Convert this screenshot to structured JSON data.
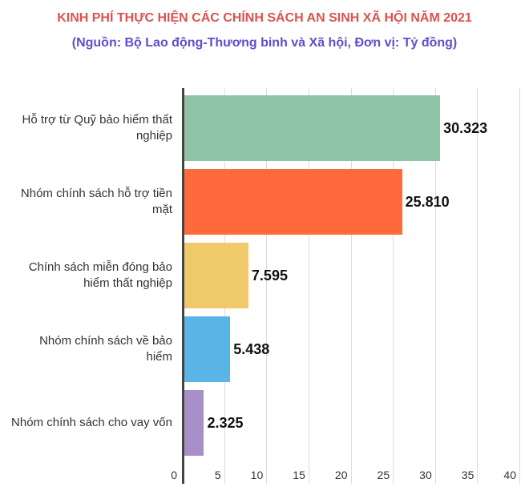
{
  "chart_data": {
    "type": "bar",
    "orientation": "horizontal",
    "title": "KINH PHÍ THỰC HIỆN CÁC CHÍNH SÁCH AN SINH XÃ HỘI NĂM 2021",
    "subtitle": "(Nguồn: Bộ Lao động-Thương binh và Xã hội, Đơn vị: Tỷ đồng)",
    "xlabel": "",
    "ylabel": "",
    "xlim": [
      0,
      40
    ],
    "grid": true,
    "legend": "none",
    "x_ticks": [
      "0",
      "5",
      "10",
      "15",
      "20",
      "25",
      "30",
      "35",
      "40"
    ],
    "categories": [
      "Hỗ trợ từ Quỹ bảo hiểm thất nghiệp",
      "Nhóm chính sách hỗ trợ tiền mặt",
      "Chính sách miễn đóng bảo hiểm thất nghiệp",
      "Nhóm chính sách về bảo hiểm",
      "Nhóm chính sách cho vay vốn"
    ],
    "values": [
      30.323,
      25.81,
      7.595,
      5.438,
      2.325
    ],
    "value_labels": [
      "30.323",
      "25.810",
      "7.595",
      "5.438",
      "2.325"
    ],
    "colors": [
      "#8fc3a6",
      "#ff6a3c",
      "#efc96a",
      "#5ab4e6",
      "#a98fc8"
    ]
  },
  "header": {
    "title": "KINH PHÍ THỰC HIỆN CÁC CHÍNH SÁCH AN SINH XÃ HỘI NĂM 2021",
    "subtitle": "(Nguồn: Bộ Lao động-Thương binh và Xã hội, Đơn vị: Tỷ đồng)"
  },
  "labels": [
    {
      "line1": "Hỗ trợ từ Quỹ bảo hiểm thất",
      "line2": "nghiệp"
    },
    {
      "line1": "Nhóm chính sách hỗ trợ tiền",
      "line2": "mặt"
    },
    {
      "line1": "Chính sách miễn đóng bảo",
      "line2": "hiểm thất nghiệp"
    },
    {
      "line1": "Nhóm chính sách về bảo",
      "line2": "hiểm"
    },
    {
      "line1": "Nhóm chính sách cho vay vốn",
      "line2": ""
    }
  ]
}
